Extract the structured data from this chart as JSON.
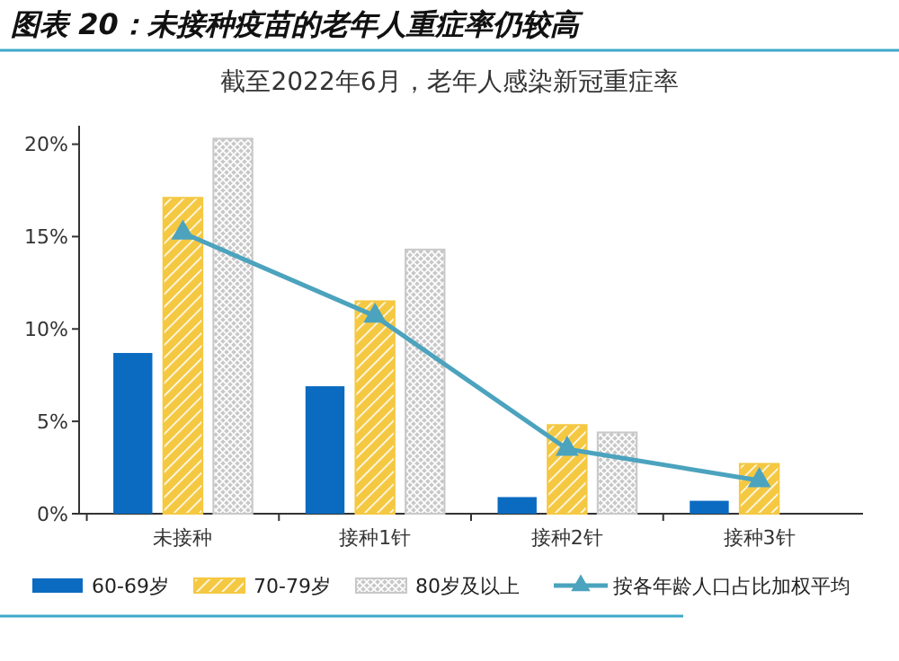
{
  "chart_data": {
    "type": "bar",
    "title": "图表 20：未接种疫苗的老年人重症率仍较高",
    "subtitle": "截至2022年6月，老年人感染新冠重症率",
    "categories": [
      "未接种",
      "接种1针",
      "接种2针",
      "接种3针"
    ],
    "series": [
      {
        "name": "60-69岁",
        "color": "#0a6bc1",
        "values": [
          8.7,
          6.9,
          0.9,
          0.7
        ]
      },
      {
        "name": "70-79岁",
        "color": "#f5c842",
        "values": [
          17.1,
          11.5,
          4.8,
          2.7
        ]
      },
      {
        "name": "80岁及以上",
        "color": "#c8c8c8",
        "values": [
          20.3,
          14.3,
          4.4,
          null
        ]
      },
      {
        "name": "按各年龄人口占比加权平均",
        "type": "line",
        "color": "#4ba3be",
        "values": [
          15.2,
          10.7,
          3.5,
          1.8
        ],
        "marker": "triangle"
      }
    ],
    "ylim": [
      0,
      21
    ],
    "yticks": [
      {
        "value": 0,
        "label": "0%"
      },
      {
        "value": 5,
        "label": "5%"
      },
      {
        "value": 10,
        "label": "10%"
      },
      {
        "value": 15,
        "label": "15%"
      },
      {
        "value": 20,
        "label": "20%"
      }
    ],
    "grid": false,
    "legend": "bottom"
  }
}
